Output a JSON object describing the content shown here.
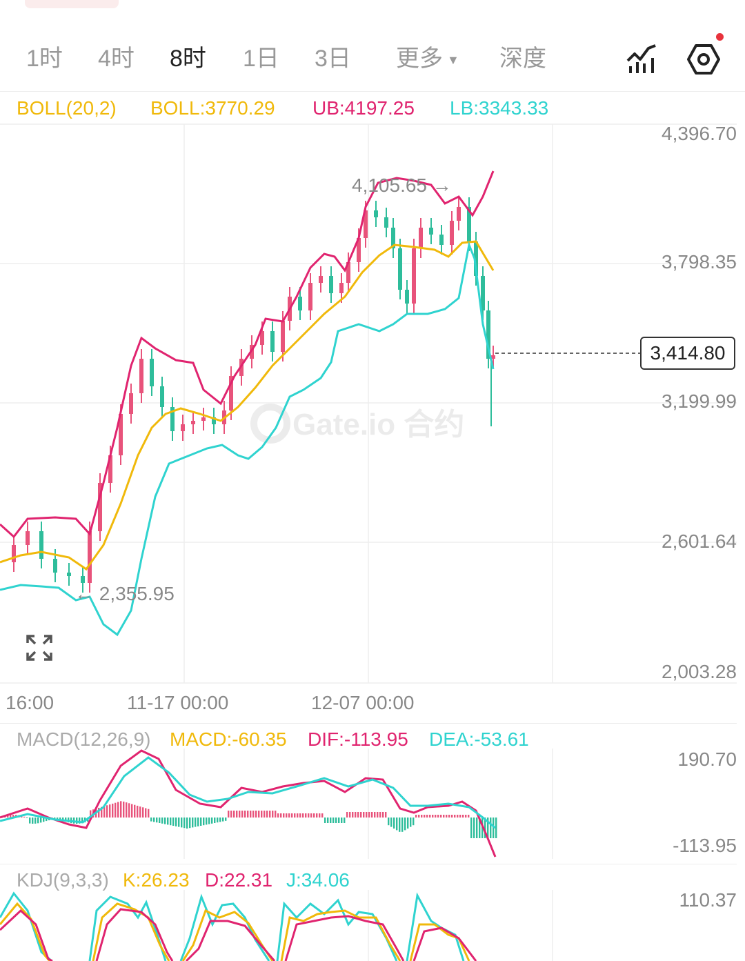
{
  "tabs": [
    {
      "label": "1时",
      "active": false
    },
    {
      "label": "4时",
      "active": false
    },
    {
      "label": "8时",
      "active": true
    },
    {
      "label": "1日",
      "active": false
    },
    {
      "label": "3日",
      "active": false
    },
    {
      "label": "更多",
      "active": false
    },
    {
      "label": "深度",
      "active": false
    }
  ],
  "more_caret": "▼",
  "icons": {
    "indicator": "chart-indicator-icon",
    "settings": "hexagon-settings-icon",
    "fullscreen": "expand-icon"
  },
  "boll": {
    "name": "BOLL(20,2)",
    "mid": "BOLL:3770.29",
    "ub": "UB:4197.25",
    "lb": "LB:3343.33"
  },
  "macd": {
    "name": "MACD(12,26,9)",
    "macd": "MACD:-60.35",
    "dif": "DIF:-113.95",
    "dea": "DEA:-53.61",
    "axis_top": "190.70",
    "axis_bottom": "-113.95"
  },
  "kdj": {
    "name": "KDJ(9,3,3)",
    "k": "K:26.23",
    "d": "D:22.31",
    "j": "J:34.06",
    "axis_top": "110.37"
  },
  "price_axis": [
    "4,396.70",
    "3,798.35",
    "3,199.99",
    "2,601.64",
    "2,003.28"
  ],
  "time_axis": [
    "16:00",
    "11-17 00:00",
    "12-07 00:00"
  ],
  "current_price": "3,414.80",
  "high_marker": "4,105.65 →",
  "low_marker": "← 2,355.95",
  "watermark": "Gate.io 合约",
  "colors": {
    "up": "#e8537b",
    "down": "#2ebd9b",
    "mid": "#f0b90b",
    "ub": "#e0246f",
    "lb": "#2fd3cf",
    "text_gray": "#888888"
  }
}
